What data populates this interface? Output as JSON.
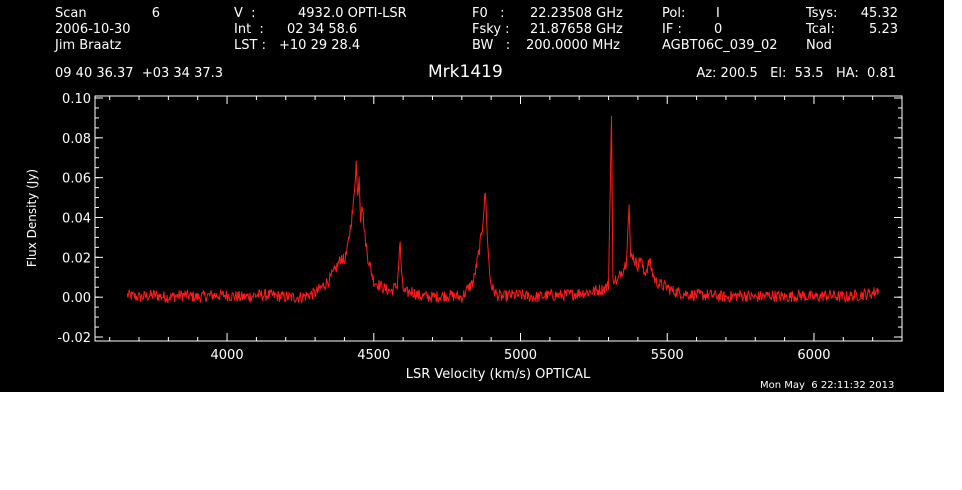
{
  "header": {
    "scan_label": "Scan",
    "scan_value": "6",
    "date": "2006-10-30",
    "observer": "Jim Braatz",
    "velocity_label": "V  :",
    "velocity_value": "4932.0 OPTI-LSR",
    "int_label": "Int  :",
    "int_value": "02 34 58.6",
    "lst_label": "LST :",
    "lst_value": "+10 29 28.4",
    "f0_label": "F0   :",
    "f0_value": "22.23508 GHz",
    "fsky_label": "Fsky :",
    "fsky_value": "21.87658 GHz",
    "bw_label": "BW   :",
    "bw_value": "200.0000 MHz",
    "pol_label": "Pol:",
    "pol_value": "I",
    "if_label": "IF :",
    "if_value": "0",
    "project": "AGBT06C_039_02",
    "tsys_label": "Tsys:",
    "tsys_value": "45.32",
    "tcal_label": "Tcal:",
    "tcal_value": "5.23",
    "proc": "Nod",
    "coords": "09 40 36.37  +03 34 37.3",
    "source": "Mrk1419",
    "az_el_ha": "Az: 200.5   El:  53.5   HA:  0.81",
    "timestamp": "Mon May  6 22:11:32 2013"
  },
  "colors": {
    "background": "#000000",
    "axes": "#ffffff",
    "trace": "#ff1a1a"
  },
  "chart_data": {
    "type": "line",
    "xlabel": "LSR Velocity (km/s) OPTICAL",
    "ylabel": "Flux Density (Jy)",
    "xlim": [
      3550,
      6300
    ],
    "ylim": [
      -0.022,
      0.101
    ],
    "xticks": [
      4000,
      4500,
      5000,
      5500,
      6000
    ],
    "xtick_labels": [
      "4000",
      "4500",
      "5000",
      "5500",
      "6000"
    ],
    "yticks": [
      -0.02,
      0.0,
      0.02,
      0.04,
      0.06,
      0.08,
      0.1
    ],
    "ytick_labels": [
      "-0.02",
      "0.00",
      "0.02",
      "0.04",
      "0.06",
      "0.08",
      "0.10"
    ],
    "grid": false,
    "series": [
      {
        "x": [
          3660,
          3700,
          3750,
          3800,
          3850,
          3900,
          3950,
          4000,
          4050,
          4100,
          4150,
          4200,
          4250,
          4300,
          4330,
          4350,
          4370,
          4390,
          4400,
          4410,
          4420,
          4430,
          4440,
          4445,
          4450,
          4455,
          4460,
          4470,
          4480,
          4490,
          4500,
          4520,
          4540,
          4560,
          4580,
          4590,
          4595,
          4600,
          4610,
          4630,
          4650,
          4700,
          4750,
          4800,
          4820,
          4840,
          4850,
          4860,
          4870,
          4880,
          4885,
          4890,
          4895,
          4900,
          4910,
          4920,
          4940,
          4960,
          5000,
          5050,
          5100,
          5150,
          5200,
          5250,
          5280,
          5300,
          5310,
          5315,
          5320,
          5330,
          5340,
          5350,
          5360,
          5370,
          5375,
          5380,
          5390,
          5400,
          5410,
          5420,
          5430,
          5440,
          5450,
          5460,
          5480,
          5500,
          5520,
          5550,
          5600,
          5650,
          5700,
          5750,
          5800,
          5850,
          5900,
          5950,
          6000,
          6050,
          6100,
          6150,
          6200,
          6220
        ],
        "y": [
          0.001,
          0.0,
          0.001,
          0.0,
          0.001,
          0.0,
          0.001,
          0.001,
          0.0,
          0.001,
          0.001,
          0.0,
          0.0,
          0.002,
          0.006,
          0.009,
          0.014,
          0.02,
          0.018,
          0.024,
          0.035,
          0.045,
          0.068,
          0.05,
          0.062,
          0.04,
          0.048,
          0.03,
          0.02,
          0.014,
          0.008,
          0.006,
          0.004,
          0.003,
          0.006,
          0.028,
          0.01,
          0.004,
          0.002,
          0.003,
          0.001,
          0.0,
          0.001,
          0.0,
          0.004,
          0.008,
          0.016,
          0.024,
          0.035,
          0.053,
          0.038,
          0.022,
          0.012,
          0.006,
          0.003,
          0.001,
          0.0,
          0.001,
          0.001,
          0.0,
          0.001,
          0.001,
          0.002,
          0.003,
          0.004,
          0.006,
          0.091,
          0.008,
          0.01,
          0.007,
          0.012,
          0.014,
          0.018,
          0.045,
          0.02,
          0.022,
          0.018,
          0.016,
          0.02,
          0.012,
          0.014,
          0.018,
          0.012,
          0.008,
          0.006,
          0.005,
          0.003,
          0.002,
          0.001,
          0.001,
          0.0,
          0.001,
          0.0,
          0.001,
          0.0,
          0.001,
          0.0,
          0.001,
          0.0,
          0.001,
          0.002,
          0.004
        ]
      }
    ]
  }
}
